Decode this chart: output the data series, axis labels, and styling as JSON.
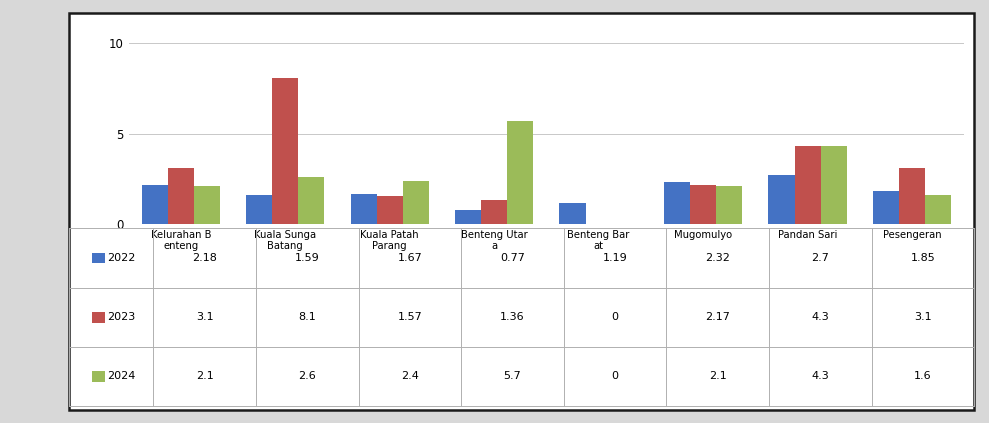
{
  "categories": [
    "Kelurahan B\nenteng",
    "Kuala Sunga\nBatang",
    "Kuala Patah\nParang",
    "Benteng Utar\na",
    "Benteng Bar\nat",
    "Mugomulyo",
    "Pandan Sari",
    "Pesengeran"
  ],
  "series": {
    "2022": [
      2.18,
      1.59,
      1.67,
      0.77,
      1.19,
      2.32,
      2.7,
      1.85
    ],
    "2023": [
      3.1,
      8.1,
      1.57,
      1.36,
      0,
      2.17,
      4.3,
      3.1
    ],
    "2024": [
      2.1,
      2.6,
      2.4,
      5.7,
      0,
      2.1,
      4.3,
      1.6
    ]
  },
  "colors": {
    "2022": "#4472C4",
    "2023": "#C0504D",
    "2024": "#9BBB59"
  },
  "ylim": [
    0,
    11
  ],
  "yticks": [
    0,
    5,
    10
  ],
  "bar_width": 0.25,
  "figsize": [
    9.89,
    4.23
  ],
  "dpi": 100,
  "table_rows": {
    "2022": [
      "2.18",
      "1.59",
      "1.67",
      "0.77",
      "1.19",
      "2.32",
      "2.7",
      "1.85"
    ],
    "2023": [
      "3.1",
      "8.1",
      "1.57",
      "1.36",
      "0",
      "2.17",
      "4.3",
      "3.1"
    ],
    "2024": [
      "2.1",
      "2.6",
      "2.4",
      "5.7",
      "0",
      "2.1",
      "4.3",
      "1.6"
    ]
  },
  "background_color": "#FFFFFF",
  "fig_background": "#D8D8D8",
  "grid_color": "#C8C8C8",
  "border_color": "#1A1A1A",
  "table_line_color": "#B0B0B0"
}
